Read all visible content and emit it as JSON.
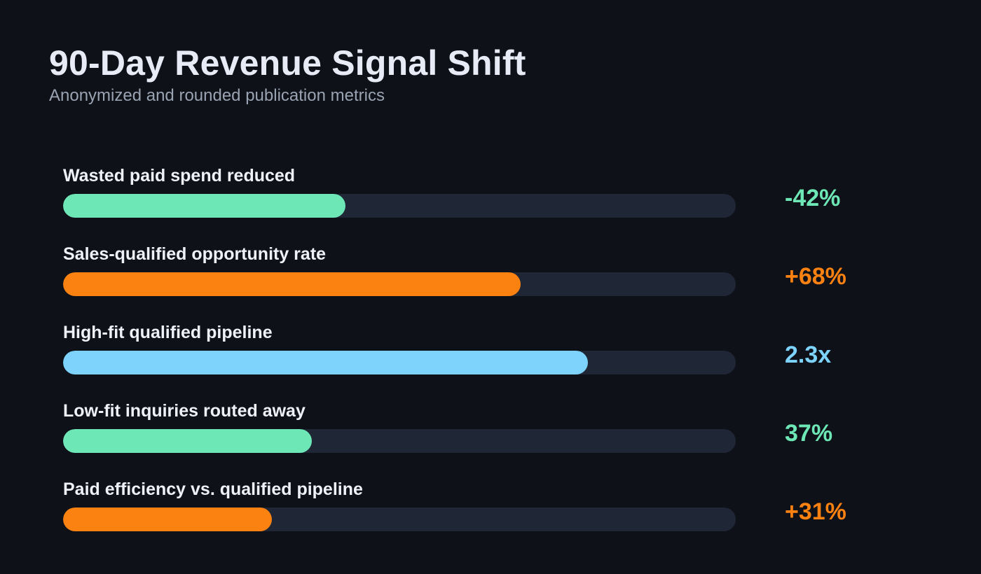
{
  "header": {
    "title": "90-Day Revenue Signal Shift",
    "subtitle": "Anonymized and rounded publication metrics"
  },
  "colors": {
    "background": "#0e1118",
    "track": "#1f2736",
    "green": "#6ee7b7",
    "orange": "#fb8110",
    "blue": "#7dd3fc"
  },
  "chart_data": {
    "type": "bar",
    "orientation": "horizontal",
    "title": "90-Day Revenue Signal Shift",
    "subtitle": "Anonymized and rounded publication metrics",
    "categories": [
      "Wasted paid spend reduced",
      "Sales-qualified opportunity rate",
      "High-fit qualified pipeline",
      "Low-fit inquiries routed away",
      "Paid efficiency vs. qualified pipeline"
    ],
    "value_labels": [
      "-42%",
      "+68%",
      "2.3x",
      "37%",
      "+31%"
    ],
    "fill_fractions": [
      0.42,
      0.68,
      0.78,
      0.37,
      0.31
    ],
    "bar_colors": [
      "#6ee7b7",
      "#fb8110",
      "#7dd3fc",
      "#6ee7b7",
      "#fb8110"
    ],
    "grid": false,
    "legend": "none"
  }
}
